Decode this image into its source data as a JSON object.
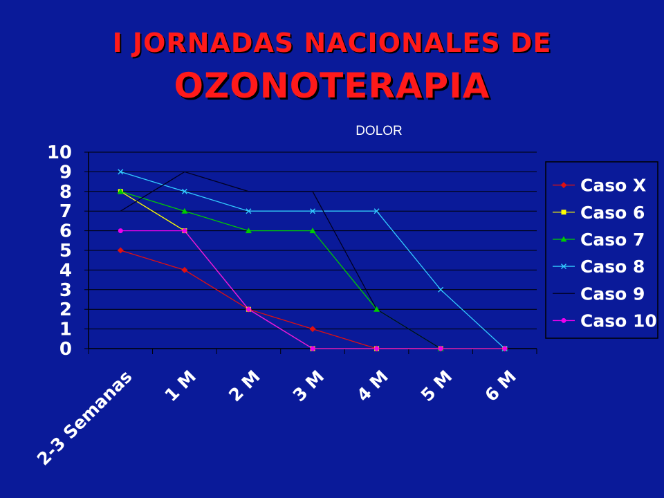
{
  "slide": {
    "title_line1": "I JORNADAS NACIONALES DE",
    "title_line2": "OZONOTERAPIA"
  },
  "chart_data": {
    "type": "line",
    "title": "DOLOR",
    "xlabel": "",
    "ylabel": "",
    "categories": [
      "2-3 Semanas",
      "1 M",
      "2 M",
      "3 M",
      "4 M",
      "5 M",
      "6 M"
    ],
    "yticks": [
      "0",
      "1",
      "2",
      "3",
      "4",
      "5",
      "6",
      "7",
      "8",
      "9",
      "10"
    ],
    "ylim": [
      0,
      10
    ],
    "grid": true,
    "legend_position": "right",
    "series": [
      {
        "name": "Caso X",
        "color": "#e01010",
        "marker": "diamond",
        "values": [
          5,
          4,
          2,
          1,
          0,
          0,
          0
        ]
      },
      {
        "name": "Caso 6",
        "color": "#ffff00",
        "marker": "square",
        "values": [
          8,
          6,
          2,
          0,
          0,
          0,
          0
        ]
      },
      {
        "name": "Caso 7",
        "color": "#00cc00",
        "marker": "triangle",
        "values": [
          8,
          7,
          6,
          6,
          2,
          0,
          0
        ]
      },
      {
        "name": "Caso 8",
        "color": "#33ccff",
        "marker": "x",
        "values": [
          9,
          8,
          7,
          7,
          7,
          3,
          0
        ]
      },
      {
        "name": "Caso 9",
        "color": "#000022",
        "marker": "none",
        "values": [
          7,
          9,
          8,
          8,
          2,
          0,
          0
        ]
      },
      {
        "name": "Caso 10",
        "color": "#ee00ee",
        "marker": "circle",
        "values": [
          6,
          6,
          2,
          0,
          0,
          0,
          0
        ]
      }
    ]
  }
}
